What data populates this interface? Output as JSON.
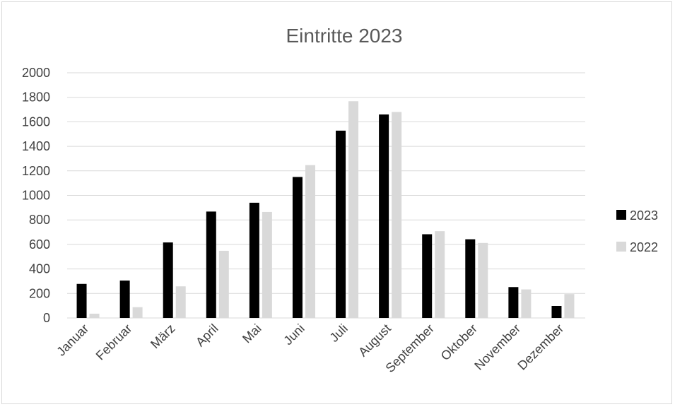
{
  "chart_data": {
    "type": "bar",
    "title": "Eintritte 2023",
    "xlabel": "",
    "ylabel": "",
    "categories": [
      "Januar",
      "Februar",
      "März",
      "April",
      "Mai",
      "Juni",
      "Juli",
      "August",
      "September",
      "Oktober",
      "November",
      "Dezember"
    ],
    "series": [
      {
        "name": "2023",
        "color": "#000000",
        "values": [
          278,
          305,
          616,
          868,
          940,
          1150,
          1528,
          1660,
          683,
          642,
          252,
          98
        ]
      },
      {
        "name": "2022",
        "color": "#d9d9d9",
        "values": [
          35,
          88,
          258,
          548,
          865,
          1247,
          1768,
          1680,
          708,
          612,
          233,
          195
        ]
      }
    ],
    "ylim": [
      0,
      2000
    ],
    "yticks": [
      "0",
      "200",
      "400",
      "600",
      "800",
      "1000",
      "1200",
      "1400",
      "1600",
      "1800",
      "2000"
    ],
    "grid": true,
    "legend_position": "right",
    "gridline_color": "#d9d9d9"
  }
}
